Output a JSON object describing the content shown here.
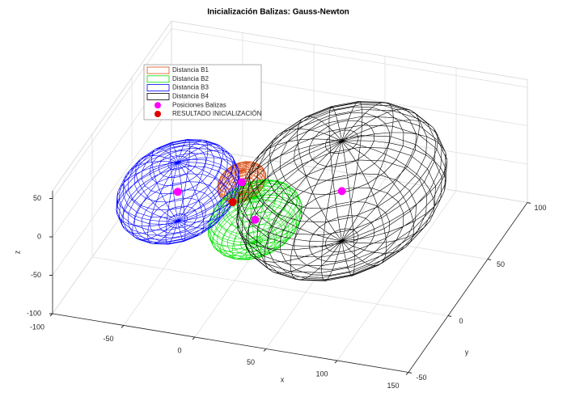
{
  "chart_data": {
    "type": "scatter3d",
    "title": "Inicialización Balizas: Gauss-Newton",
    "xlabel": "x",
    "ylabel": "y",
    "zlabel": "z",
    "xlim": [
      -100,
      150
    ],
    "ylim": [
      -50,
      100
    ],
    "zlim": [
      -100,
      60
    ],
    "xticks": [
      -100,
      -50,
      0,
      50,
      100,
      150
    ],
    "yticks": [
      -50,
      0,
      50,
      100
    ],
    "zticks": [
      -100,
      -50,
      0,
      50
    ],
    "grid": true,
    "legend": "northwest",
    "spheres": [
      {
        "name": "Distancia B1",
        "color": "#d95319",
        "radius": 15
      },
      {
        "name": "Distancia B2",
        "color": "#00e000",
        "radius": 29
      },
      {
        "name": "Distancia B3",
        "color": "#0000ff",
        "radius": 38
      },
      {
        "name": "Distancia B4",
        "color": "#000000",
        "radius": 65
      }
    ],
    "beacons": {
      "name": "Posiciones Balizas",
      "color": "#ff00ff",
      "x": [
        -5,
        20,
        -41,
        62
      ],
      "y": [
        18,
        -10,
        2,
        24
      ],
      "z": [
        0,
        0,
        0,
        0
      ]
    },
    "result": {
      "name": "RESULTADO INICIALIZACIÓN",
      "color": "#e00000",
      "x": [
        -2
      ],
      "y": [
        1
      ],
      "z": [
        0
      ]
    }
  }
}
